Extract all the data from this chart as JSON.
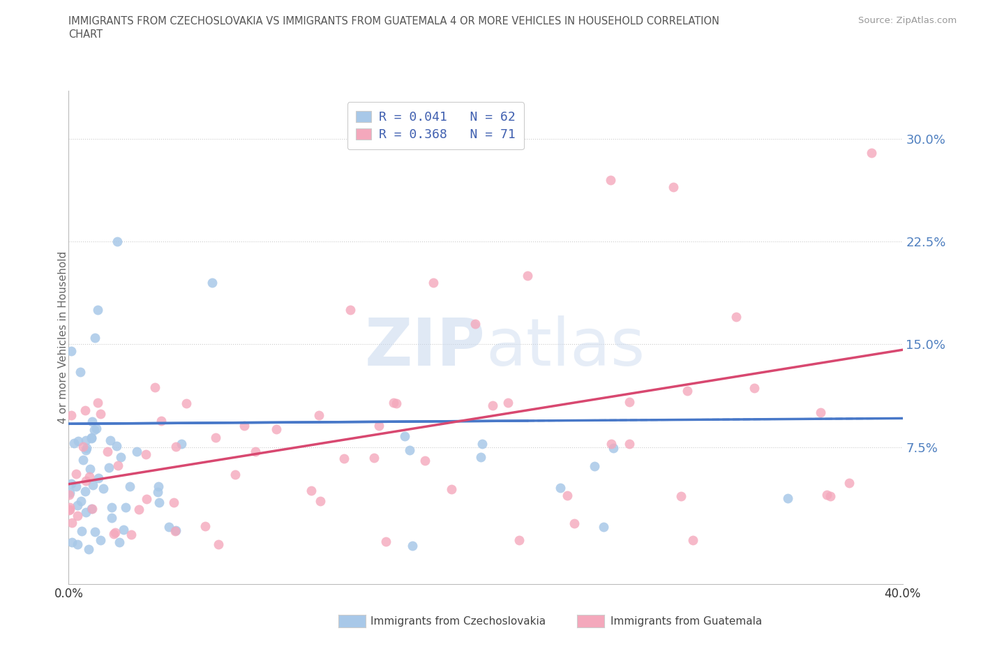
{
  "title_line1": "IMMIGRANTS FROM CZECHOSLOVAKIA VS IMMIGRANTS FROM GUATEMALA 4 OR MORE VEHICLES IN HOUSEHOLD CORRELATION",
  "title_line2": "CHART",
  "source": "Source: ZipAtlas.com",
  "ylabel": "4 or more Vehicles in Household",
  "ytick_vals": [
    0.075,
    0.15,
    0.225,
    0.3
  ],
  "ytick_labels": [
    "7.5%",
    "15.0%",
    "22.5%",
    "30.0%"
  ],
  "xlim": [
    0.0,
    0.4
  ],
  "ylim": [
    -0.025,
    0.335
  ],
  "legend_label_blue": "R = 0.041   N = 62",
  "legend_label_pink": "R = 0.368   N = 71",
  "scatter_color_blue": "#a8c8e8",
  "scatter_color_pink": "#f4a8bc",
  "trend_color_blue": "#4878c8",
  "trend_color_pink": "#d84870",
  "blue_trend_intercept": 0.092,
  "blue_trend_slope": 0.01,
  "pink_trend_intercept": 0.048,
  "pink_trend_slope": 0.245,
  "watermark_zip": "ZIP",
  "watermark_atlas": "atlas",
  "grid_color": "#cccccc",
  "background_color": "#ffffff",
  "tick_color": "#5080c0",
  "title_color": "#555555",
  "source_color": "#999999",
  "legend_text_color": "#4060b0"
}
